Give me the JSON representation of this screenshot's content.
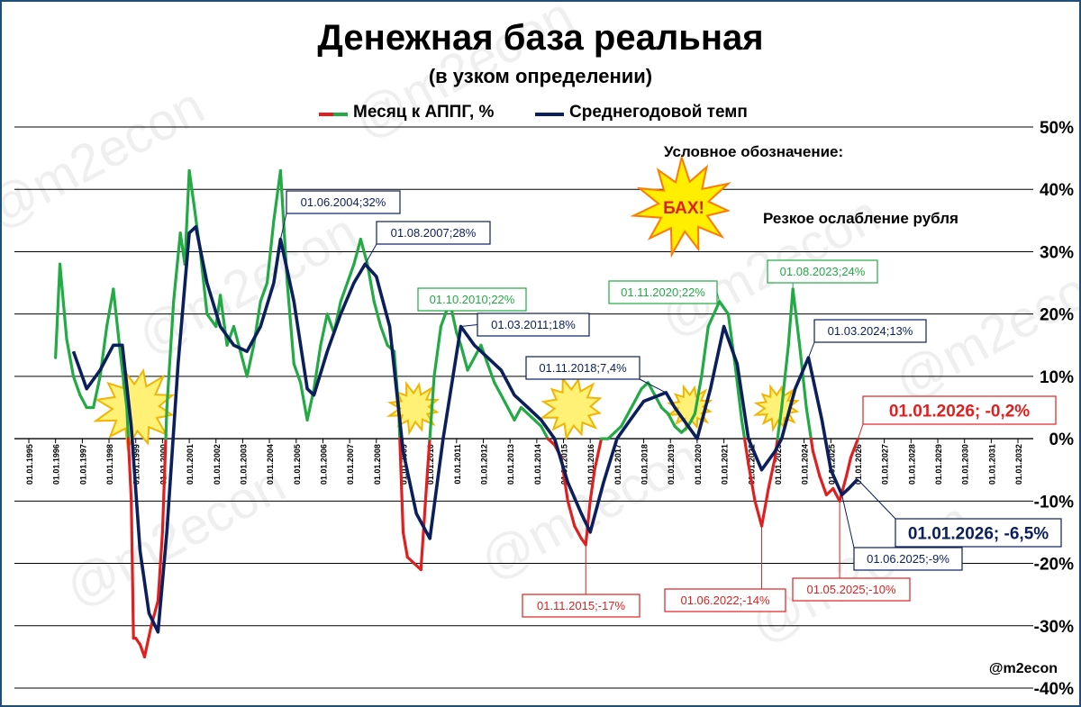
{
  "title": "Денежная база реальная",
  "subtitle": "(в узком определении)",
  "legend": {
    "month_label": "Месяц к АППГ, %",
    "avg_label": "Среднегодовой темп"
  },
  "conditional_note": {
    "heading": "Условное обозначение:",
    "bang_text": "БАХ!",
    "description": "Резкое ослабление рубля"
  },
  "handle": "@m2econ",
  "watermark_text": "@m2econ",
  "colors": {
    "month_positive": "#22aa44",
    "month_negative": "#e02020",
    "average": "#0b1f5c",
    "burst_fill": "#fff176",
    "burst_stroke": "#f2b400",
    "bang_burst_fill": "#ffee00",
    "bang_text": "#e02020"
  },
  "chart_data": {
    "type": "line",
    "title": "Денежная база реальная",
    "subtitle": "(в узком определении)",
    "x_axis": {
      "type": "date",
      "min": "1995-01-01",
      "max": "2032-01-01",
      "tick_labels": [
        "01.01.1995",
        "01.01.1996",
        "01.01.1997",
        "01.01.1998",
        "01.01.1999",
        "01.01.2000",
        "01.01.2001",
        "01.01.2002",
        "01.01.2003",
        "01.01.2004",
        "01.01.2005",
        "01.01.2006",
        "01.01.2007",
        "01.01.2008",
        "01.01.2009",
        "01.01.2010",
        "01.01.2011",
        "01.01.2012",
        "01.01.2013",
        "01.01.2014",
        "01.01.2015",
        "01.01.2016",
        "01.01.2017",
        "01.01.2018",
        "01.01.2019",
        "01.01.2020",
        "01.01.2021",
        "01.01.2022",
        "01.01.2023",
        "01.01.2024",
        "01.01.2025",
        "01.01.2026",
        "01.01.2027",
        "01.01.2028",
        "01.01.2029",
        "01.01.2030",
        "01.01.2031",
        "01.01.2032"
      ]
    },
    "y_axis": {
      "min": -40,
      "max": 50,
      "unit": "%",
      "tick_values": [
        50,
        40,
        30,
        20,
        10,
        0,
        -10,
        -20,
        -30,
        -40
      ],
      "tick_labels": [
        "50%",
        "40%",
        "30%",
        "20%",
        "10%",
        "0%",
        "-10%",
        "-20%",
        "-30%",
        "-40%"
      ],
      "position": "right"
    },
    "grid": true,
    "legend_position": "top-center",
    "series": [
      {
        "name": "Месяц к АППГ, %",
        "color_positive": "#22aa44",
        "color_negative": "#e02020",
        "points": [
          [
            "1996-01-01",
            13
          ],
          [
            "1996-03-01",
            28
          ],
          [
            "1996-06-01",
            16
          ],
          [
            "1996-09-01",
            10
          ],
          [
            "1996-12-01",
            7
          ],
          [
            "1997-03-01",
            5
          ],
          [
            "1997-06-01",
            5
          ],
          [
            "1997-09-01",
            10
          ],
          [
            "1997-12-01",
            18
          ],
          [
            "1998-03-01",
            24
          ],
          [
            "1998-06-01",
            14
          ],
          [
            "1998-09-01",
            5
          ],
          [
            "1998-11-01",
            -10
          ],
          [
            "1998-12-01",
            -32
          ],
          [
            "1999-01-01",
            -32
          ],
          [
            "1999-03-01",
            -33
          ],
          [
            "1999-05-01",
            -35
          ],
          [
            "1999-08-01",
            -30
          ],
          [
            "1999-11-01",
            -26
          ],
          [
            "2000-01-01",
            -15
          ],
          [
            "2000-03-01",
            5
          ],
          [
            "2000-06-01",
            22
          ],
          [
            "2000-09-01",
            33
          ],
          [
            "2000-11-01",
            28
          ],
          [
            "2001-01-01",
            43
          ],
          [
            "2001-03-01",
            38
          ],
          [
            "2001-06-01",
            30
          ],
          [
            "2001-09-01",
            20
          ],
          [
            "2002-01-01",
            18
          ],
          [
            "2002-03-01",
            23
          ],
          [
            "2002-06-01",
            15
          ],
          [
            "2002-09-01",
            18
          ],
          [
            "2002-12-01",
            14
          ],
          [
            "2003-03-01",
            10
          ],
          [
            "2003-06-01",
            15
          ],
          [
            "2003-09-01",
            22
          ],
          [
            "2003-12-01",
            25
          ],
          [
            "2004-03-01",
            35
          ],
          [
            "2004-06-01",
            43
          ],
          [
            "2004-09-01",
            25
          ],
          [
            "2004-12-01",
            12
          ],
          [
            "2005-03-01",
            9
          ],
          [
            "2005-06-01",
            3
          ],
          [
            "2005-09-01",
            8
          ],
          [
            "2005-12-01",
            15
          ],
          [
            "2006-03-01",
            20
          ],
          [
            "2006-06-01",
            17
          ],
          [
            "2006-09-01",
            22
          ],
          [
            "2006-12-01",
            25
          ],
          [
            "2007-03-01",
            28
          ],
          [
            "2007-06-01",
            32
          ],
          [
            "2007-09-01",
            28
          ],
          [
            "2007-12-01",
            22
          ],
          [
            "2008-03-01",
            18
          ],
          [
            "2008-06-01",
            15
          ],
          [
            "2008-09-01",
            14
          ],
          [
            "2008-11-01",
            5
          ],
          [
            "2009-01-01",
            -15
          ],
          [
            "2009-03-01",
            -19
          ],
          [
            "2009-06-01",
            -20
          ],
          [
            "2009-09-01",
            -21
          ],
          [
            "2009-12-01",
            -5
          ],
          [
            "2010-03-01",
            10
          ],
          [
            "2010-06-01",
            18
          ],
          [
            "2010-10-01",
            22
          ],
          [
            "2011-01-01",
            17
          ],
          [
            "2011-03-01",
            15
          ],
          [
            "2011-06-01",
            11
          ],
          [
            "2011-09-01",
            13
          ],
          [
            "2011-12-01",
            15
          ],
          [
            "2012-03-01",
            12
          ],
          [
            "2012-06-01",
            9
          ],
          [
            "2012-09-01",
            7
          ],
          [
            "2012-12-01",
            5
          ],
          [
            "2013-03-01",
            3
          ],
          [
            "2013-06-01",
            5
          ],
          [
            "2013-09-01",
            4
          ],
          [
            "2013-12-01",
            3
          ],
          [
            "2014-03-01",
            2
          ],
          [
            "2014-06-01",
            0
          ],
          [
            "2014-09-01",
            -1
          ],
          [
            "2014-12-01",
            -3
          ],
          [
            "2015-03-01",
            -10
          ],
          [
            "2015-06-01",
            -14
          ],
          [
            "2015-09-01",
            -16
          ],
          [
            "2015-11-01",
            -17
          ],
          [
            "2016-01-01",
            -10
          ],
          [
            "2016-03-01",
            -5
          ],
          [
            "2016-06-01",
            0
          ],
          [
            "2016-09-01",
            0
          ],
          [
            "2016-12-01",
            1
          ],
          [
            "2017-03-01",
            2
          ],
          [
            "2017-06-01",
            4
          ],
          [
            "2017-09-01",
            6
          ],
          [
            "2017-12-01",
            8
          ],
          [
            "2018-03-01",
            9
          ],
          [
            "2018-06-01",
            7
          ],
          [
            "2018-09-01",
            5
          ],
          [
            "2018-12-01",
            4
          ],
          [
            "2019-03-01",
            2
          ],
          [
            "2019-06-01",
            1
          ],
          [
            "2019-09-01",
            2
          ],
          [
            "2019-12-01",
            4
          ],
          [
            "2020-03-01",
            10
          ],
          [
            "2020-06-01",
            18
          ],
          [
            "2020-11-01",
            22
          ],
          [
            "2021-03-01",
            20
          ],
          [
            "2021-06-01",
            12
          ],
          [
            "2021-09-01",
            3
          ],
          [
            "2021-12-01",
            -4
          ],
          [
            "2022-03-01",
            -10
          ],
          [
            "2022-06-01",
            -14
          ],
          [
            "2022-09-01",
            -8
          ],
          [
            "2022-12-01",
            -3
          ],
          [
            "2023-03-01",
            5
          ],
          [
            "2023-06-01",
            15
          ],
          [
            "2023-08-01",
            24
          ],
          [
            "2023-11-01",
            15
          ],
          [
            "2024-02-01",
            5
          ],
          [
            "2024-05-01",
            -2
          ],
          [
            "2024-08-01",
            -6
          ],
          [
            "2024-11-01",
            -9
          ],
          [
            "2025-02-01",
            -8
          ],
          [
            "2025-05-01",
            -10
          ],
          [
            "2025-08-01",
            -6
          ],
          [
            "2025-10-01",
            -3
          ],
          [
            "2026-01-01",
            -0.2
          ]
        ]
      },
      {
        "name": "Среднегодовой темп",
        "color": "#0b1f5c",
        "points": [
          [
            "1996-09-01",
            14
          ],
          [
            "1997-03-01",
            8
          ],
          [
            "1997-09-01",
            11
          ],
          [
            "1998-03-01",
            15
          ],
          [
            "1998-07-01",
            15
          ],
          [
            "1998-11-01",
            2
          ],
          [
            "1999-03-01",
            -18
          ],
          [
            "1999-07-01",
            -28
          ],
          [
            "1999-11-01",
            -31
          ],
          [
            "2000-03-01",
            -15
          ],
          [
            "2000-08-01",
            12
          ],
          [
            "2001-01-01",
            33
          ],
          [
            "2001-04-01",
            34
          ],
          [
            "2001-09-01",
            25
          ],
          [
            "2002-03-01",
            18
          ],
          [
            "2002-09-01",
            15
          ],
          [
            "2003-03-01",
            14
          ],
          [
            "2003-09-01",
            18
          ],
          [
            "2004-03-01",
            25
          ],
          [
            "2004-06-01",
            32
          ],
          [
            "2004-12-01",
            22
          ],
          [
            "2005-06-01",
            8
          ],
          [
            "2005-09-01",
            7
          ],
          [
            "2006-03-01",
            14
          ],
          [
            "2006-09-01",
            20
          ],
          [
            "2007-03-01",
            25
          ],
          [
            "2007-08-01",
            28
          ],
          [
            "2008-01-01",
            26
          ],
          [
            "2008-07-01",
            18
          ],
          [
            "2009-01-01",
            -2
          ],
          [
            "2009-07-01",
            -12
          ],
          [
            "2010-01-01",
            -16
          ],
          [
            "2010-07-01",
            0
          ],
          [
            "2011-03-01",
            18
          ],
          [
            "2011-09-01",
            15
          ],
          [
            "2012-03-01",
            13
          ],
          [
            "2012-09-01",
            11
          ],
          [
            "2013-03-01",
            7
          ],
          [
            "2013-09-01",
            5
          ],
          [
            "2014-03-01",
            3
          ],
          [
            "2014-09-01",
            0
          ],
          [
            "2015-03-01",
            -7
          ],
          [
            "2015-09-01",
            -12
          ],
          [
            "2016-01-01",
            -15
          ],
          [
            "2016-07-01",
            -7
          ],
          [
            "2017-01-01",
            0
          ],
          [
            "2017-07-01",
            3
          ],
          [
            "2018-01-01",
            6
          ],
          [
            "2018-11-01",
            7.4
          ],
          [
            "2019-03-01",
            5
          ],
          [
            "2019-09-01",
            2
          ],
          [
            "2020-01-01",
            0
          ],
          [
            "2020-07-01",
            8
          ],
          [
            "2021-01-01",
            18
          ],
          [
            "2021-07-01",
            12
          ],
          [
            "2021-12-01",
            0
          ],
          [
            "2022-06-01",
            -5
          ],
          [
            "2022-12-01",
            -2
          ],
          [
            "2023-03-01",
            0
          ],
          [
            "2023-09-01",
            8
          ],
          [
            "2024-03-01",
            13
          ],
          [
            "2024-09-01",
            3
          ],
          [
            "2025-01-01",
            -5
          ],
          [
            "2025-06-01",
            -9
          ],
          [
            "2025-09-01",
            -8
          ],
          [
            "2026-01-01",
            -6.5
          ]
        ]
      }
    ],
    "callouts": [
      {
        "text": "01.06.2004;32%",
        "color": "#0b1f5c",
        "date": "2004-06-01",
        "value": 32
      },
      {
        "text": "01.08.2007;28%",
        "color": "#0b1f5c",
        "date": "2007-08-01",
        "value": 28
      },
      {
        "text": "01.10.2010;22%",
        "color": "#22aa44",
        "date": "2010-10-01",
        "value": 22
      },
      {
        "text": "01.03.2011;18%",
        "color": "#0b1f5c",
        "date": "2011-03-01",
        "value": 18
      },
      {
        "text": "01.11.2018;7,4%",
        "color": "#0b1f5c",
        "date": "2018-11-01",
        "value": 7.4
      },
      {
        "text": "01.11.2020;22%",
        "color": "#22aa44",
        "date": "2020-11-01",
        "value": 22
      },
      {
        "text": "01.08.2023;24%",
        "color": "#22aa44",
        "date": "2023-08-01",
        "value": 24
      },
      {
        "text": "01.03.2024;13%",
        "color": "#0b1f5c",
        "date": "2024-03-01",
        "value": 13
      },
      {
        "text": "01.01.2026; -0,2%",
        "color": "#e02020",
        "date": "2026-01-01",
        "value": -0.2
      },
      {
        "text": "01.01.2026; -6,5%",
        "color": "#0b1f5c",
        "date": "2026-01-01",
        "value": -6.5
      },
      {
        "text": "01.06.2025;-9%",
        "color": "#0b1f5c",
        "date": "2025-06-01",
        "value": -9
      },
      {
        "text": "01.05.2025;-10%",
        "color": "#e02020",
        "date": "2025-05-01",
        "value": -10
      },
      {
        "text": "01.06.2022;-14%",
        "color": "#e02020",
        "date": "2022-06-01",
        "value": -14
      },
      {
        "text": "01.11.2015;-17%",
        "color": "#e02020",
        "date": "2015-11-01",
        "value": -17
      }
    ],
    "ruble_weakening_markers": [
      "1998-09-01",
      "2009-02-01",
      "2015-01-01",
      "2019-06-01",
      "2022-09-01"
    ]
  }
}
